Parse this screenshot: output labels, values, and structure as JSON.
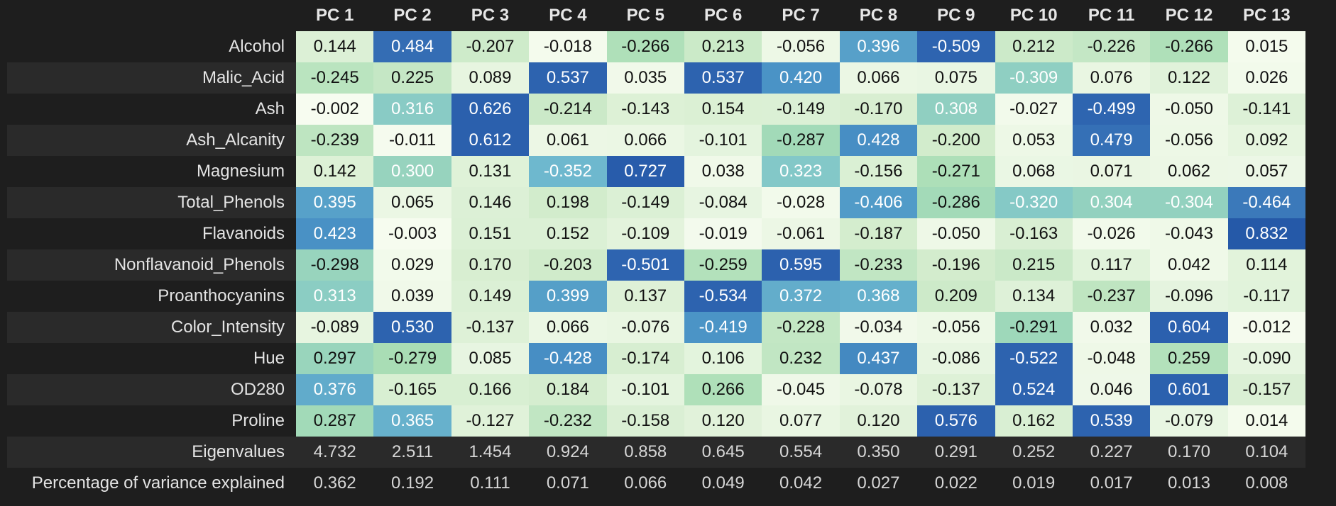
{
  "colors": {
    "background": "#1e1e1e",
    "stripe": "#2a2a2a",
    "scale_low": "#f7fcf0",
    "scale_mid": "#a8ddb5",
    "scale_high": "#2b5fb0"
  },
  "table": {
    "columns": [
      "PC 1",
      "PC 2",
      "PC 3",
      "PC 4",
      "PC 5",
      "PC 6",
      "PC 7",
      "PC 8",
      "PC 9",
      "PC 10",
      "PC 11",
      "PC 12",
      "PC 13"
    ],
    "rows": [
      {
        "label": "Alcohol",
        "values": [
          "0.144",
          "0.484",
          "-0.207",
          "-0.018",
          "-0.266",
          "0.213",
          "-0.056",
          "0.396",
          "-0.509",
          "0.212",
          "-0.226",
          "-0.266",
          "0.015"
        ]
      },
      {
        "label": "Malic_Acid",
        "values": [
          "-0.245",
          "0.225",
          "0.089",
          "0.537",
          "0.035",
          "0.537",
          "0.420",
          "0.066",
          "0.075",
          "-0.309",
          "0.076",
          "0.122",
          "0.026"
        ]
      },
      {
        "label": "Ash",
        "values": [
          "-0.002",
          "0.316",
          "0.626",
          "-0.214",
          "-0.143",
          "0.154",
          "-0.149",
          "-0.170",
          "0.308",
          "-0.027",
          "-0.499",
          "-0.050",
          "-0.141"
        ]
      },
      {
        "label": "Ash_Alcanity",
        "values": [
          "-0.239",
          "-0.011",
          "0.612",
          "0.061",
          "0.066",
          "-0.101",
          "-0.287",
          "0.428",
          "-0.200",
          "0.053",
          "0.479",
          "-0.056",
          "0.092"
        ]
      },
      {
        "label": "Magnesium",
        "values": [
          "0.142",
          "0.300",
          "0.131",
          "-0.352",
          "0.727",
          "0.038",
          "0.323",
          "-0.156",
          "-0.271",
          "0.068",
          "0.071",
          "0.062",
          "0.057"
        ]
      },
      {
        "label": "Total_Phenols",
        "values": [
          "0.395",
          "0.065",
          "0.146",
          "0.198",
          "-0.149",
          "-0.084",
          "-0.028",
          "-0.406",
          "-0.286",
          "-0.320",
          "0.304",
          "-0.304",
          "-0.464"
        ]
      },
      {
        "label": "Flavanoids",
        "values": [
          "0.423",
          "-0.003",
          "0.151",
          "0.152",
          "-0.109",
          "-0.019",
          "-0.061",
          "-0.187",
          "-0.050",
          "-0.163",
          "-0.026",
          "-0.043",
          "0.832"
        ]
      },
      {
        "label": "Nonflavanoid_Phenols",
        "values": [
          "-0.298",
          "0.029",
          "0.170",
          "-0.203",
          "-0.501",
          "-0.259",
          "0.595",
          "-0.233",
          "-0.196",
          "0.215",
          "0.117",
          "0.042",
          "0.114"
        ]
      },
      {
        "label": "Proanthocyanins",
        "values": [
          "0.313",
          "0.039",
          "0.149",
          "0.399",
          "0.137",
          "-0.534",
          "0.372",
          "0.368",
          "0.209",
          "0.134",
          "-0.237",
          "-0.096",
          "-0.117"
        ]
      },
      {
        "label": "Color_Intensity",
        "values": [
          "-0.089",
          "0.530",
          "-0.137",
          "0.066",
          "-0.076",
          "-0.419",
          "-0.228",
          "-0.034",
          "-0.056",
          "-0.291",
          "0.032",
          "0.604",
          "-0.012"
        ]
      },
      {
        "label": "Hue",
        "values": [
          "0.297",
          "-0.279",
          "0.085",
          "-0.428",
          "-0.174",
          "0.106",
          "0.232",
          "0.437",
          "-0.086",
          "-0.522",
          "-0.048",
          "0.259",
          "-0.090"
        ]
      },
      {
        "label": "OD280",
        "values": [
          "0.376",
          "-0.165",
          "0.166",
          "0.184",
          "-0.101",
          "0.266",
          "-0.045",
          "-0.078",
          "-0.137",
          "0.524",
          "0.046",
          "0.601",
          "-0.157"
        ]
      },
      {
        "label": "Proline",
        "values": [
          "0.287",
          "0.365",
          "-0.127",
          "-0.232",
          "-0.158",
          "0.120",
          "0.077",
          "0.120",
          "0.576",
          "0.162",
          "0.539",
          "-0.079",
          "0.014"
        ]
      }
    ],
    "stats": [
      {
        "label": "Eigenvalues",
        "values": [
          "4.732",
          "2.511",
          "1.454",
          "0.924",
          "0.858",
          "0.645",
          "0.554",
          "0.350",
          "0.291",
          "0.252",
          "0.227",
          "0.170",
          "0.104"
        ]
      },
      {
        "label": "Percentage of variance explained",
        "values": [
          "0.362",
          "0.192",
          "0.111",
          "0.071",
          "0.066",
          "0.049",
          "0.042",
          "0.027",
          "0.022",
          "0.019",
          "0.017",
          "0.013",
          "0.008"
        ]
      }
    ]
  }
}
